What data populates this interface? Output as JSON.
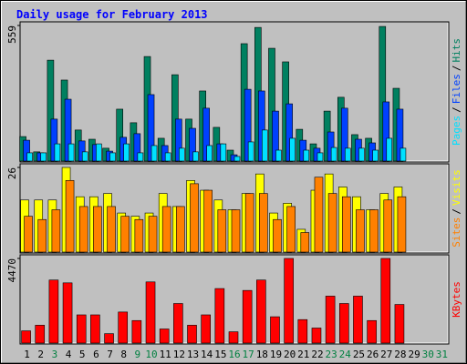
{
  "chart_data": {
    "type": "bar",
    "title": "Daily usage for February 2013",
    "categories": [
      "1",
      "2",
      "3",
      "4",
      "5",
      "6",
      "7",
      "8",
      "9",
      "10",
      "11",
      "12",
      "13",
      "14",
      "15",
      "16",
      "17",
      "18",
      "19",
      "20",
      "21",
      "22",
      "23",
      "24",
      "25",
      "26",
      "27",
      "28",
      "29",
      "30",
      "31"
    ],
    "category_color": "#000000",
    "weekend_color": "#008040",
    "weekend_indices": [
      2,
      8,
      9,
      15,
      16,
      22,
      23,
      29,
      30
    ],
    "label_separator": "/",
    "panels": [
      {
        "ylim": [
          0,
          559
        ],
        "yticks": [
          559
        ],
        "series": [
          {
            "name": "Hits",
            "color": "#008060",
            "values": [
              101,
              38,
              416,
              334,
              128,
              90,
              53,
              214,
              158,
              431,
              94,
              356,
              173,
              289,
              139,
              45,
              484,
              551,
              465,
              409,
              131,
              71,
              206,
              263,
              109,
              94,
              555,
              300,
              null,
              null,
              null
            ]
          },
          {
            "name": "Files",
            "color": "#0040ff",
            "values": [
              86,
              34,
              173,
              255,
              83,
              68,
              41,
              98,
              113,
              274,
              64,
              173,
              135,
              218,
              71,
              26,
              296,
              289,
              206,
              236,
              86,
              53,
              120,
              218,
              90,
              75,
              244,
              214,
              null,
              null,
              null
            ]
          },
          {
            "name": "Pages",
            "color": "#00e0ff",
            "values": [
              34,
              34,
              71,
              71,
              38,
              71,
              34,
              71,
              34,
              64,
              34,
              53,
              38,
              64,
              71,
              19,
              79,
              128,
              45,
              94,
              45,
              34,
              56,
              53,
              53,
              45,
              94,
              53,
              null,
              null,
              null
            ]
          }
        ]
      },
      {
        "ylim": [
          0,
          26
        ],
        "yticks": [
          26
        ],
        "series": [
          {
            "name": "Visits",
            "color": "#ffff00",
            "values": [
              16,
              16,
              16,
              26,
              17,
              17,
              18,
              12,
              11,
              12,
              18,
              14,
              22,
              19,
              16,
              13,
              18,
              24,
              12,
              15,
              7,
              19,
              24,
              20,
              17,
              13,
              18,
              20,
              null,
              null,
              null
            ]
          },
          {
            "name": "Sites",
            "color": "#ff8000",
            "values": [
              11,
              10,
              13,
              22,
              14,
              14,
              14,
              11,
              10,
              11,
              14,
              14,
              21,
              19,
              13,
              13,
              18,
              18,
              10,
              14,
              6,
              23,
              18,
              17,
              13,
              13,
              16,
              17,
              null,
              null,
              null
            ]
          }
        ]
      },
      {
        "ylim": [
          0,
          4470
        ],
        "yticks": [
          4470
        ],
        "series": [
          {
            "name": "KBytes",
            "color": "#ff0000",
            "values": [
              646,
              944,
              3330,
              3180,
              1490,
              1490,
              497,
              1640,
              1190,
              3230,
              745,
              2090,
              944,
              1490,
              2880,
              596,
              2780,
              3330,
              1390,
              4470,
              1240,
              795,
              2480,
              2090,
              2480,
              1190,
              4470,
              2040,
              null,
              null,
              null
            ]
          }
        ]
      }
    ]
  }
}
